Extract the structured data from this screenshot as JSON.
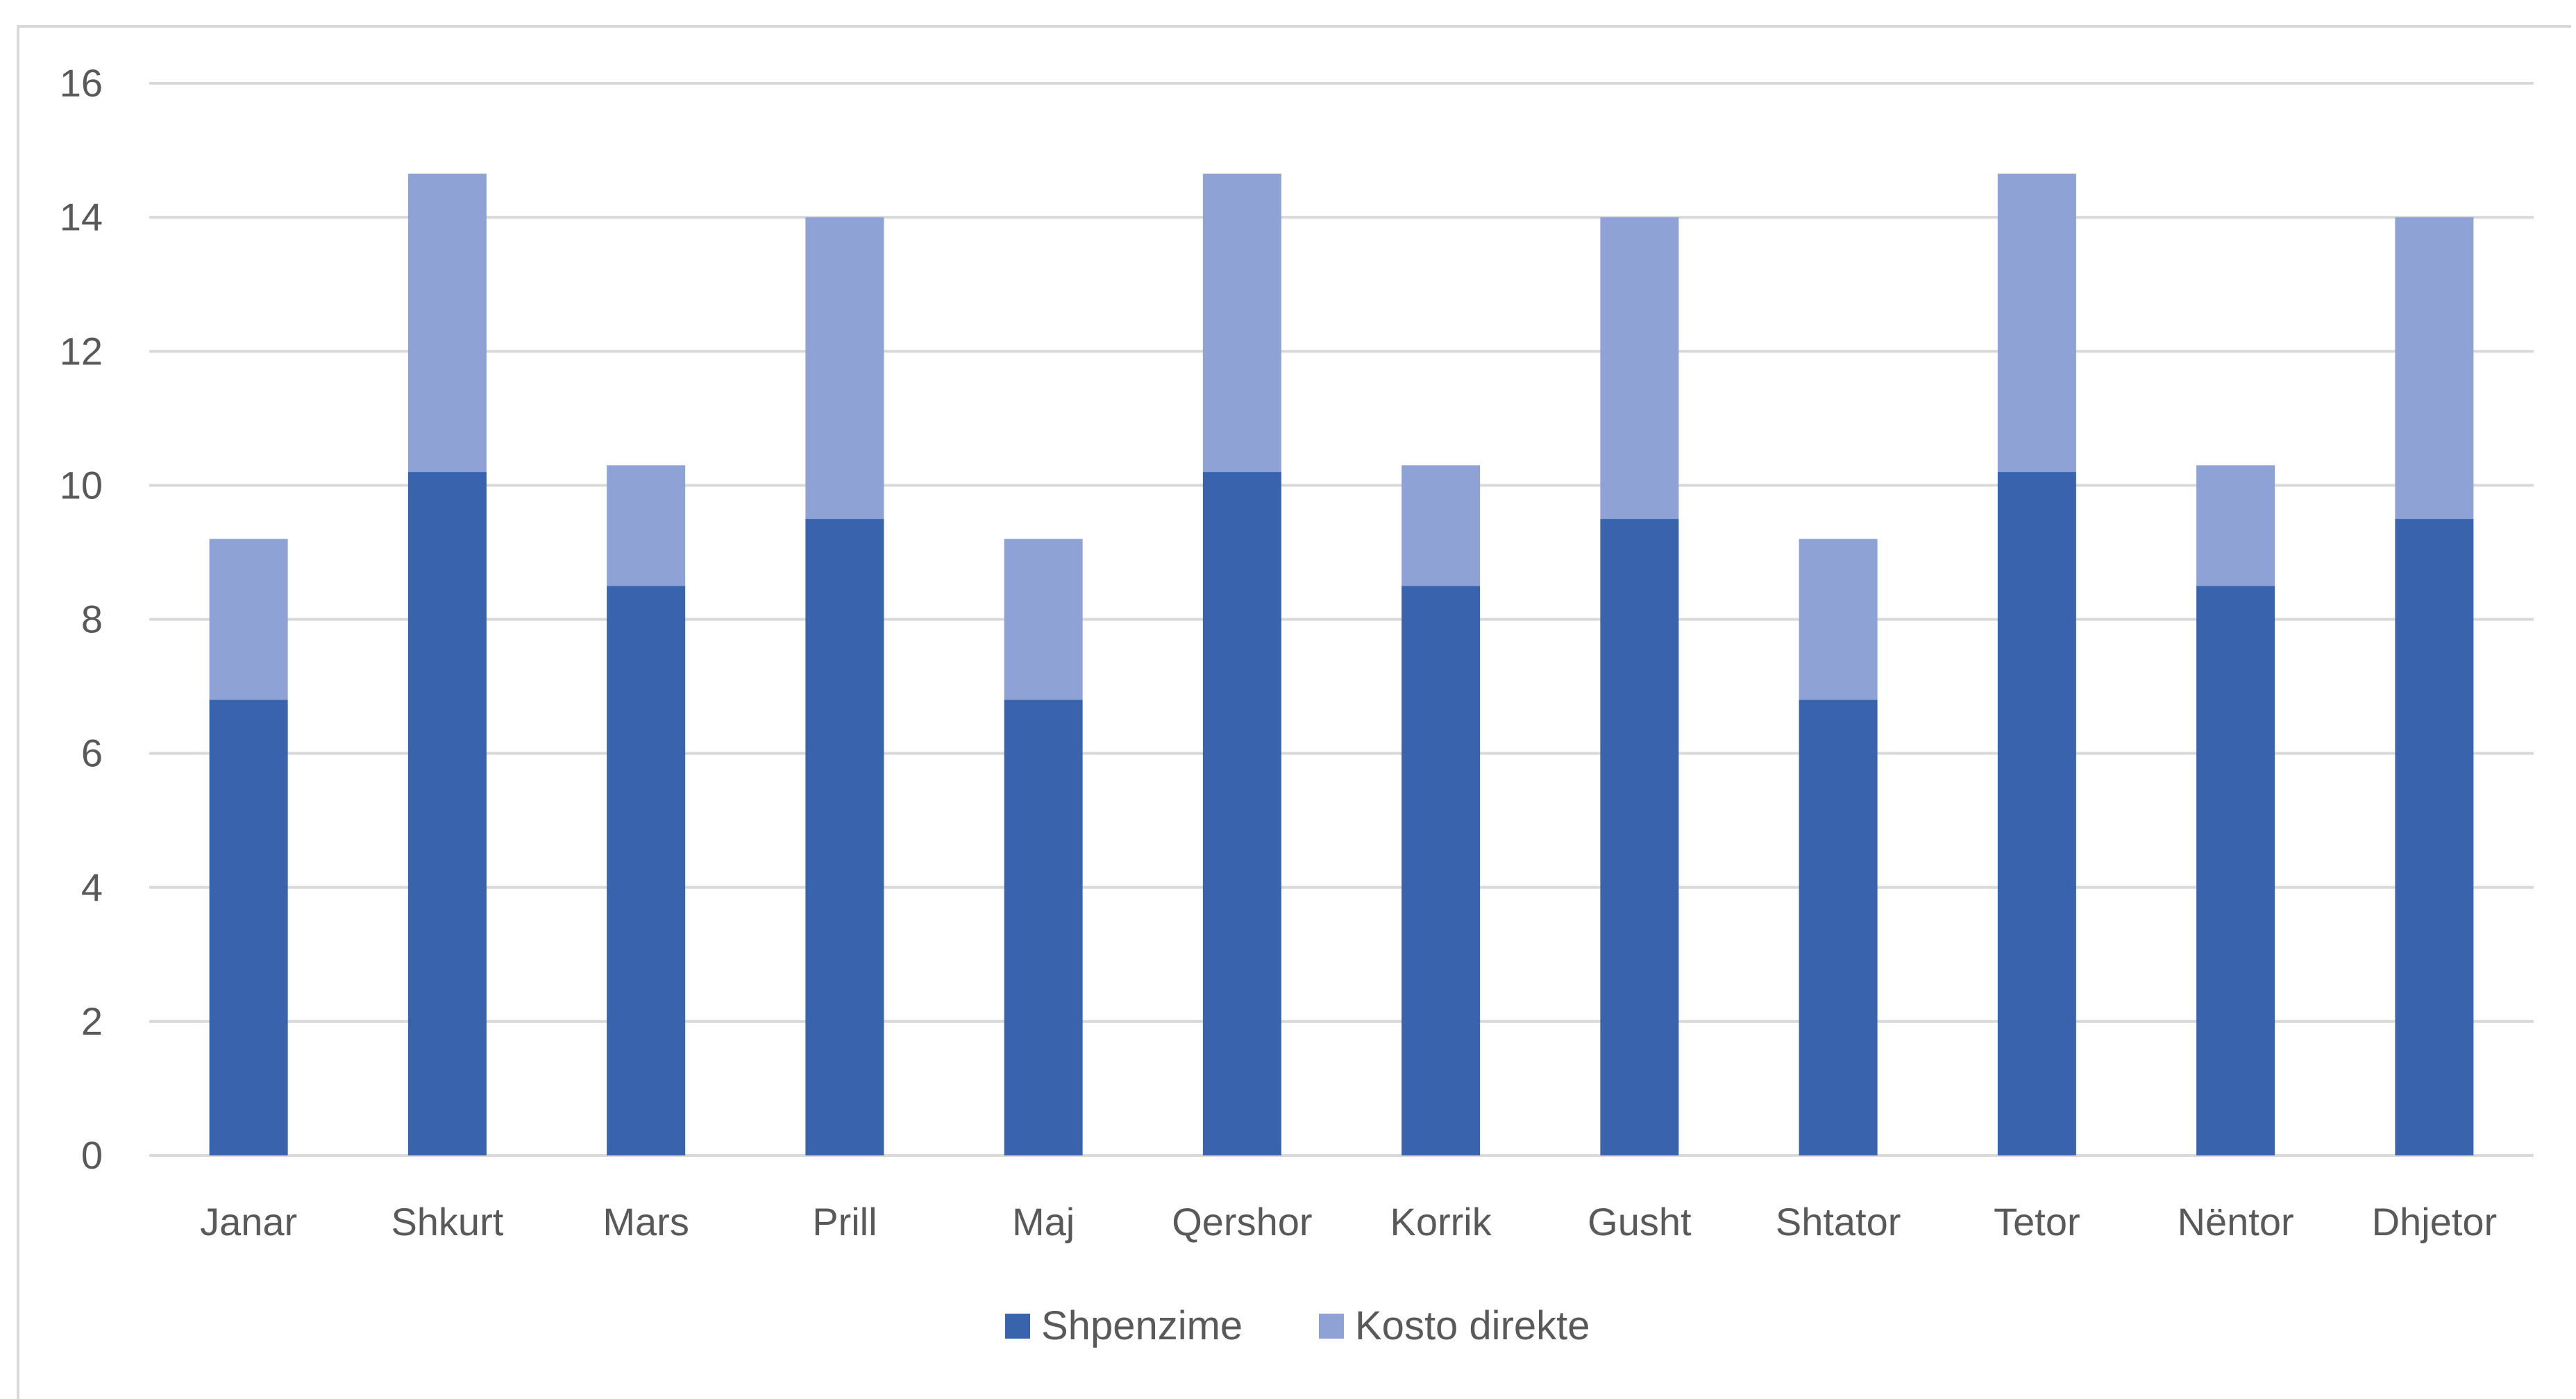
{
  "chart_data": {
    "type": "bar",
    "stacked": true,
    "title": "",
    "xlabel": "",
    "ylabel": "",
    "categories": [
      "Janar",
      "Shkurt",
      "Mars",
      "Prill",
      "Maj",
      "Qershor",
      "Korrik",
      "Gusht",
      "Shtator",
      "Tetor",
      "Nëntor",
      "Dhjetor"
    ],
    "series": [
      {
        "name": "Shpenzime",
        "color": "#3a63ad",
        "values": [
          6.8,
          10.2,
          8.5,
          9.5,
          6.8,
          10.2,
          8.5,
          9.5,
          6.8,
          10.2,
          8.5,
          9.5
        ]
      },
      {
        "name": "Kosto direkte",
        "color": "#8ea2d5",
        "values": [
          2.4,
          4.45,
          1.8,
          4.5,
          2.4,
          4.45,
          1.8,
          4.5,
          2.4,
          4.45,
          1.8,
          4.5
        ]
      }
    ],
    "ylim": [
      0,
      16
    ],
    "yticks": [
      "0",
      "2",
      "4",
      "6",
      "8",
      "10",
      "12",
      "14",
      "16"
    ],
    "grid": true,
    "legend_position": "bottom"
  }
}
